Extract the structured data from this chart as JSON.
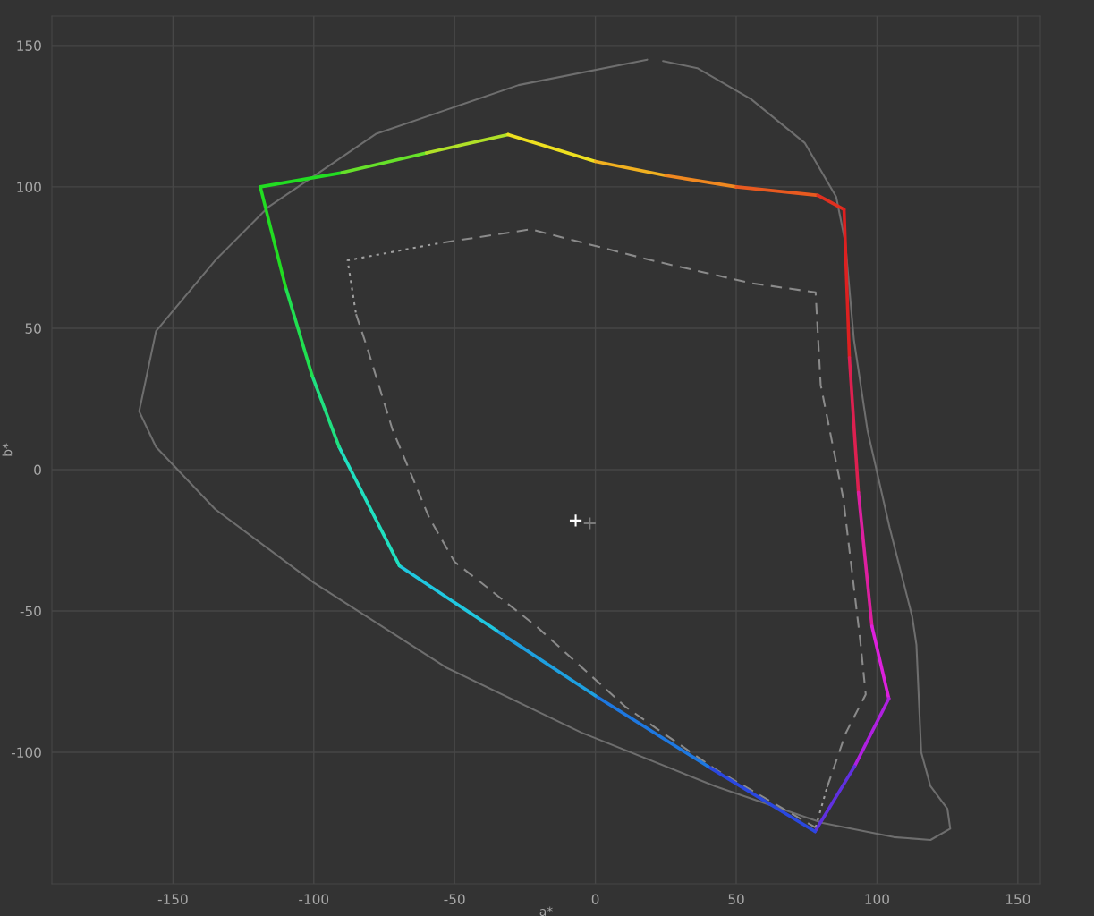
{
  "chart_data": {
    "type": "line",
    "xlabel": "a*",
    "ylabel": "b*",
    "xlim": [
      -193,
      158
    ],
    "ylim": [
      -146.5,
      160.4
    ],
    "xticks": [
      -150,
      -100,
      -50,
      0,
      50,
      100,
      150
    ],
    "yticks": [
      -100,
      -50,
      0,
      50,
      100,
      150
    ],
    "grid": true,
    "legend": false,
    "marker": "none",
    "line_style": "solid",
    "series": [
      {
        "color": "#6e6e6e",
        "x": [
          18.4,
          -27.3,
          -78,
          -116,
          -135,
          -156,
          -162,
          -156,
          -135,
          -100,
          -53,
          -5,
          42.6,
          80.7,
          106,
          119,
          126,
          125,
          119,
          115.7,
          114,
          112.5,
          104.5,
          96.6,
          91.8,
          88.7,
          85.5,
          74.4,
          55.3,
          36.2,
          24
        ],
        "values": [
          145,
          136,
          118.7,
          93,
          74,
          49,
          20.6,
          8,
          -14,
          -40,
          -70,
          -93,
          -112,
          -125,
          -130,
          -131,
          -127,
          -120,
          -112,
          -100,
          -62,
          -52,
          -20.6,
          14,
          46,
          80.7,
          96.5,
          115.5,
          131,
          142,
          144.5
        ]
      },
      {
        "color": "#8a8a8a",
        "line_style": "dashed",
        "x": [
          -85,
          -81,
          -72,
          -59,
          -50,
          -21,
          10.8,
          42.6,
          78.2
        ],
        "values": [
          55,
          43,
          14,
          -17,
          -32.6,
          -55.4,
          -84,
          -106,
          -126.6
        ]
      },
      {
        "color": "#a0a0a0",
        "line_style": "dotted",
        "x": [
          78.2,
          82.3
        ],
        "values": [
          -126.6,
          -112.3
        ]
      },
      {
        "color": "#8a8a8a",
        "line_style": "dashed",
        "x": [
          82.3,
          89,
          96,
          94,
          88,
          80,
          78.2,
          55,
          20,
          -23,
          -56
        ],
        "values": [
          -112.3,
          -93,
          -79.5,
          -60,
          -10,
          30,
          62.7,
          66,
          74,
          85,
          80
        ]
      },
      {
        "color": "#a0a0a0",
        "line_style": "dotted",
        "x": [
          -56,
          -88,
          -85
        ],
        "values": [
          80,
          74,
          55
        ]
      },
      {
        "color": "#22dd22",
        "x": [
          -119,
          -90
        ],
        "values": [
          100,
          105
        ]
      },
      {
        "color": "#66e02a",
        "x": [
          -90,
          -60
        ],
        "values": [
          105,
          112
        ]
      },
      {
        "color": "#b0e028",
        "x": [
          -60,
          -31
        ],
        "values": [
          112,
          118.5
        ]
      },
      {
        "color": "#eee020",
        "x": [
          -31,
          0
        ],
        "values": [
          118.5,
          109
        ]
      },
      {
        "color": "#f0b020",
        "x": [
          0,
          25
        ],
        "values": [
          109,
          104
        ]
      },
      {
        "color": "#f08820",
        "x": [
          25,
          50
        ],
        "values": [
          104,
          100
        ]
      },
      {
        "color": "#e85a20",
        "x": [
          50,
          79
        ],
        "values": [
          100,
          97
        ]
      },
      {
        "color": "#e03020",
        "x": [
          79,
          88.3
        ],
        "values": [
          97,
          92
        ]
      },
      {
        "color": "#dd2020",
        "x": [
          88.3,
          90.2
        ],
        "values": [
          92,
          39.6
        ]
      },
      {
        "color": "#dd2050",
        "x": [
          90.2,
          93.4
        ],
        "values": [
          39.6,
          -8
        ]
      },
      {
        "color": "#dd20a0",
        "x": [
          93.4,
          98.2
        ],
        "values": [
          -8,
          -55.4
        ]
      },
      {
        "color": "#dd20dd",
        "x": [
          98.2,
          104.2
        ],
        "values": [
          -55.4,
          -81
        ]
      },
      {
        "color": "#b020e0",
        "x": [
          104.2,
          92
        ],
        "values": [
          -81,
          -105
        ]
      },
      {
        "color": "#6030e0",
        "x": [
          92,
          78
        ],
        "values": [
          -105,
          -128
        ]
      },
      {
        "color": "#2a48e0",
        "x": [
          78,
          40
        ],
        "values": [
          -128,
          -105
        ]
      },
      {
        "color": "#1e78e0",
        "x": [
          40,
          0
        ],
        "values": [
          -105,
          -80
        ]
      },
      {
        "color": "#1ea0e0",
        "x": [
          0,
          -35
        ],
        "values": [
          -80,
          -57
        ]
      },
      {
        "color": "#20c8e0",
        "x": [
          -35,
          -69.6
        ],
        "values": [
          -57,
          -34
        ]
      },
      {
        "color": "#20e0c0",
        "x": [
          -69.6,
          -91
        ],
        "values": [
          -34,
          8
        ]
      },
      {
        "color": "#20e080",
        "x": [
          -91,
          -100.5
        ],
        "values": [
          8,
          33
        ]
      },
      {
        "color": "#20e050",
        "x": [
          -100.5,
          -110
        ],
        "values": [
          33,
          64.5
        ]
      },
      {
        "color": "#22dd22",
        "x": [
          -110,
          -119
        ],
        "values": [
          64.5,
          100
        ]
      },
      {
        "type": "scatter",
        "marker": "cross",
        "color": "#ffffff",
        "x": [
          -7
        ],
        "values": [
          -18
        ]
      },
      {
        "type": "scatter",
        "marker": "cross",
        "color": "#7a7a7a",
        "x": [
          -2
        ],
        "values": [
          -19
        ]
      }
    ]
  }
}
